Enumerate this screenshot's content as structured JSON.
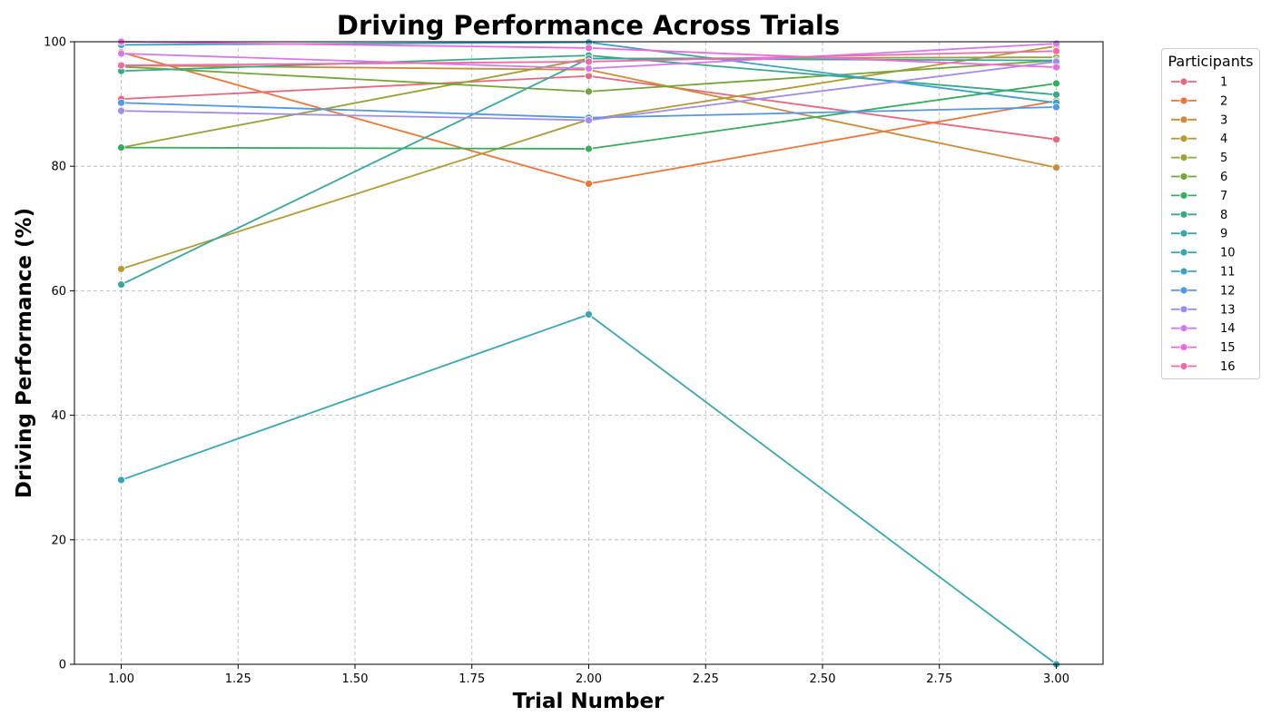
{
  "chart_data": {
    "type": "line",
    "title": "Driving Performance Across Trials",
    "xlabel": "Trial Number",
    "ylabel": "Driving Performance (%)",
    "xlim": [
      0.9,
      3.1
    ],
    "ylim": [
      0,
      100
    ],
    "xticks": [
      "1.00",
      "1.25",
      "1.50",
      "1.75",
      "2.00",
      "2.25",
      "2.50",
      "2.75",
      "3.00"
    ],
    "yticks": [
      "0",
      "20",
      "40",
      "60",
      "80",
      "100"
    ],
    "grid": true,
    "legend_title": "Participants",
    "legend_position": "outside-right",
    "x": [
      1,
      2,
      3
    ],
    "series": [
      {
        "name": "1",
        "color": "#e8677b",
        "values": [
          90.8,
          94.5,
          84.3
        ]
      },
      {
        "name": "2",
        "color": "#ee7536",
        "values": [
          98.3,
          77.2,
          90.5
        ]
      },
      {
        "name": "3",
        "color": "#cc8b38",
        "values": [
          96.2,
          95.5,
          79.8
        ]
      },
      {
        "name": "4",
        "color": "#b29a34",
        "values": [
          63.5,
          87.5,
          99.3
        ]
      },
      {
        "name": "5",
        "color": "#9ba138",
        "values": [
          83.0,
          97.3,
          97.5
        ]
      },
      {
        "name": "6",
        "color": "#74a637",
        "values": [
          96.0,
          92.0,
          97.0
        ]
      },
      {
        "name": "7",
        "color": "#36ac5c",
        "values": [
          83.0,
          82.8,
          93.3
        ]
      },
      {
        "name": "8",
        "color": "#36a98a",
        "values": [
          95.3,
          97.8,
          91.5
        ]
      },
      {
        "name": "9",
        "color": "#38a69f",
        "values": [
          61.0,
          97.3,
          97.0
        ]
      },
      {
        "name": "10",
        "color": "#38a7b4",
        "values": [
          29.6,
          56.2,
          0.0
        ]
      },
      {
        "name": "11",
        "color": "#3aa2c4",
        "values": [
          99.5,
          99.9,
          90.2
        ]
      },
      {
        "name": "12",
        "color": "#5296e4",
        "values": [
          90.2,
          87.8,
          89.5
        ]
      },
      {
        "name": "13",
        "color": "#a18ced",
        "values": [
          88.9,
          87.4,
          96.8
        ]
      },
      {
        "name": "14",
        "color": "#d37af0",
        "values": [
          98.1,
          95.7,
          99.7
        ]
      },
      {
        "name": "15",
        "color": "#ee6ad8",
        "values": [
          100.0,
          99.0,
          95.9
        ]
      },
      {
        "name": "16",
        "color": "#f06aa6",
        "values": [
          96.2,
          96.8,
          98.5
        ]
      }
    ]
  }
}
